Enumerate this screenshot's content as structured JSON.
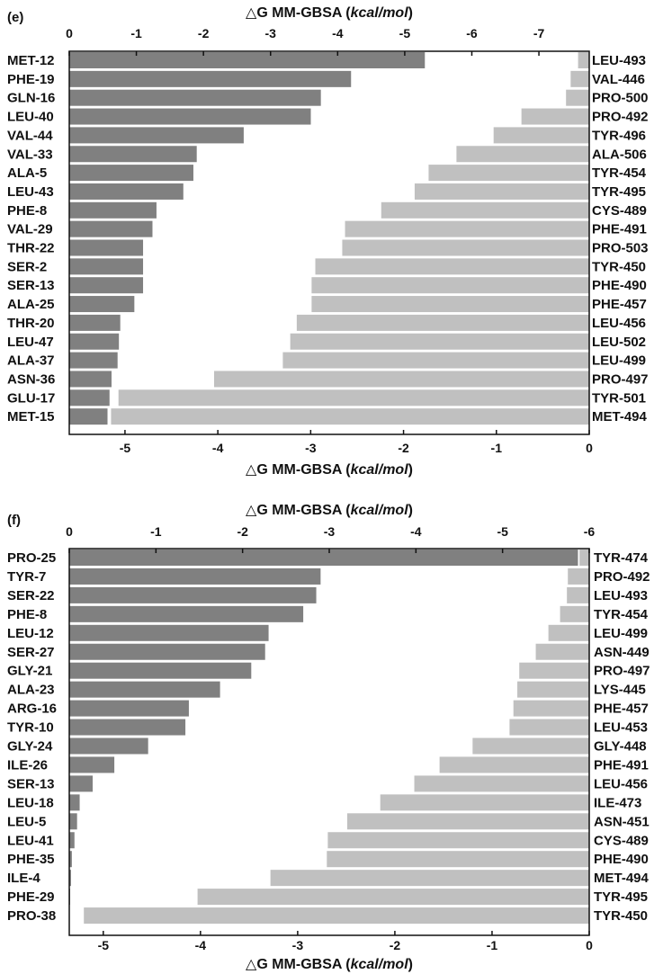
{
  "chart_data": [
    {
      "panel_label": "(e)",
      "type": "bar",
      "orientation": "horizontal",
      "top_axis": {
        "title_prefix": "△G MM-GBSA (",
        "title_units": "kcal/mol",
        "title_suffix": ")",
        "range": [
          0,
          -7.75
        ],
        "ticks": [
          "0",
          "-1",
          "-2",
          "-3",
          "-4",
          "-5",
          "-6",
          "-7"
        ]
      },
      "bottom_axis": {
        "title_prefix": "△G MM-GBSA (",
        "title_units": "kcal/mol",
        "title_suffix": ")",
        "range": [
          -5.6,
          0
        ],
        "ticks": [
          "-5",
          "-4",
          "-3",
          "-2",
          "-1",
          "0"
        ]
      },
      "series": [
        {
          "name": "peptide residues (top axis)",
          "color": "#808080",
          "axis": "top",
          "labels": [
            "MET-12",
            "PHE-19",
            "GLN-16",
            "LEU-40",
            "VAL-44",
            "VAL-33",
            "ALA-5",
            "LEU-43",
            "PHE-8",
            "VAL-29",
            "THR-22",
            "SER-2",
            "SER-13",
            "ALA-25",
            "THR-20",
            "LEU-47",
            "ALA-37",
            "ASN-36",
            "GLU-17",
            "MET-15"
          ],
          "values": [
            -5.3,
            -4.2,
            -3.75,
            -3.6,
            -2.6,
            -1.9,
            -1.85,
            -1.7,
            -1.3,
            -1.24,
            -1.1,
            -1.1,
            -1.1,
            -0.97,
            -0.76,
            -0.74,
            -0.72,
            -0.63,
            -0.6,
            -0.57
          ]
        },
        {
          "name": "receptor residues (bottom axis)",
          "color": "#c0c0c0",
          "axis": "bottom",
          "labels": [
            "LEU-493",
            "VAL-446",
            "PRO-500",
            "PRO-492",
            "TYR-496",
            "ALA-506",
            "TYR-454",
            "TYR-495",
            "CYS-489",
            "PHE-491",
            "PRO-503",
            "TYR-450",
            "PHE-490",
            "PHE-457",
            "LEU-456",
            "LEU-502",
            "LEU-499",
            "PRO-497",
            "TYR-501",
            "MET-494"
          ],
          "values": [
            -0.12,
            -0.2,
            -0.25,
            -0.73,
            -1.03,
            -1.43,
            -1.73,
            -1.88,
            -2.24,
            -2.63,
            -2.66,
            -2.95,
            -2.99,
            -2.99,
            -3.15,
            -3.22,
            -3.3,
            -4.04,
            -5.07,
            -5.15
          ]
        }
      ]
    },
    {
      "panel_label": "(f)",
      "type": "bar",
      "orientation": "horizontal",
      "top_axis": {
        "title_prefix": "△G MM-GBSA (",
        "title_units": "kcal/mol",
        "title_suffix": ")",
        "range": [
          0,
          -6
        ],
        "ticks": [
          "0",
          "-1",
          "-2",
          "-3",
          "-4",
          "-5",
          "-6"
        ]
      },
      "bottom_axis": {
        "title_prefix": "△G MM-GBSA (",
        "title_units": "kcal/mol",
        "title_suffix": ")",
        "range": [
          -5.35,
          0
        ],
        "ticks": [
          "-5",
          "-4",
          "-3",
          "-2",
          "-1",
          "0"
        ]
      },
      "series": [
        {
          "name": "peptide residues (top axis)",
          "color": "#808080",
          "axis": "top",
          "labels": [
            "PRO-25",
            "TYR-7",
            "SER-22",
            "PHE-8",
            "LEU-12",
            "SER-27",
            "GLY-21",
            "ALA-23",
            "ARG-16",
            "TYR-10",
            "GLY-24",
            "ILE-26",
            "SER-13",
            "LEU-18",
            "LEU-5",
            "LEU-41",
            "PHE-35",
            "ILE-4",
            "PHE-29",
            "PRO-38"
          ],
          "values": [
            -5.87,
            -2.9,
            -2.85,
            -2.7,
            -2.3,
            -2.26,
            -2.1,
            -1.74,
            -1.38,
            -1.34,
            -0.91,
            -0.52,
            -0.27,
            -0.12,
            -0.09,
            -0.06,
            -0.03,
            -0.02,
            -0.01,
            0
          ]
        },
        {
          "name": "receptor residues (bottom axis)",
          "color": "#c0c0c0",
          "axis": "bottom",
          "labels": [
            "TYR-474",
            "PRO-492",
            "LEU-493",
            "TYR-454",
            "LEU-499",
            "ASN-449",
            "PRO-497",
            "LYS-445",
            "PHE-457",
            "LEU-453",
            "GLY-448",
            "PHE-491",
            "LEU-456",
            "ILE-473",
            "ASN-451",
            "CYS-489",
            "PHE-490",
            "MET-494",
            "TYR-495",
            "TYR-450"
          ],
          "values": [
            -0.1,
            -0.22,
            -0.23,
            -0.3,
            -0.42,
            -0.55,
            -0.72,
            -0.74,
            -0.78,
            -0.82,
            -1.2,
            -1.54,
            -1.8,
            -2.15,
            -2.49,
            -2.69,
            -2.7,
            -3.28,
            -4.03,
            -5.2
          ]
        }
      ]
    }
  ]
}
